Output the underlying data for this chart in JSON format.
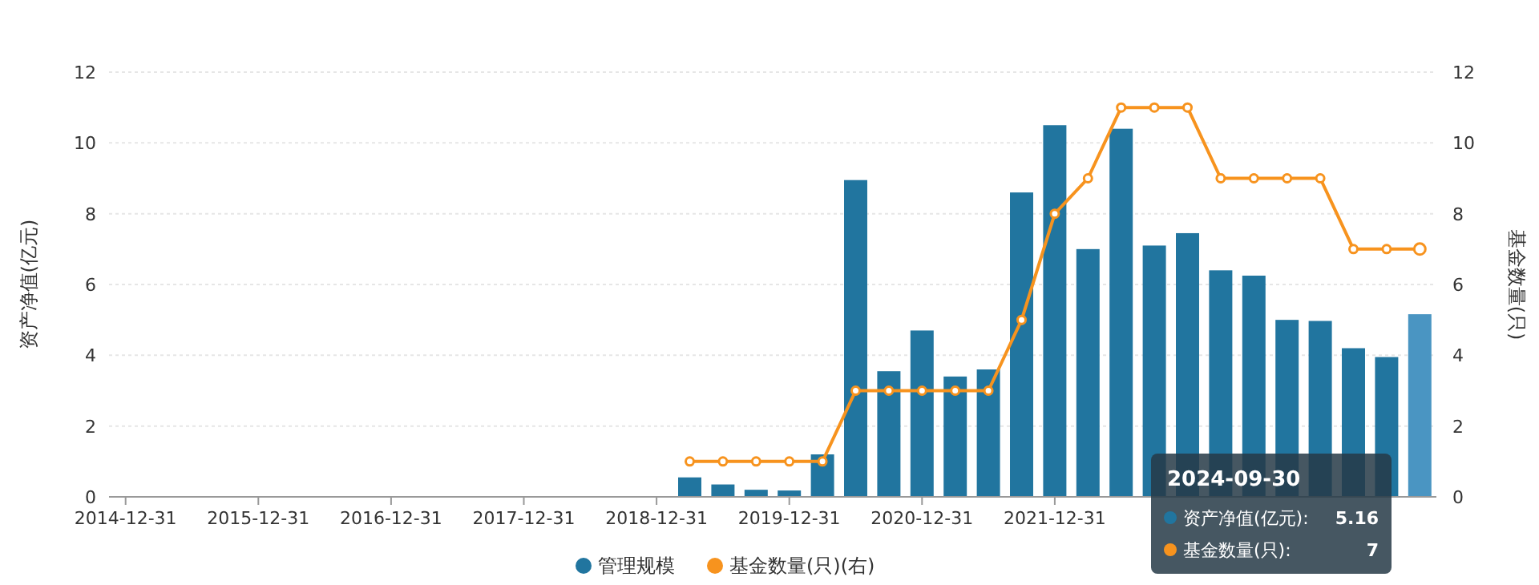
{
  "chart_data": {
    "type": "bar",
    "ylabel": "资产净值(亿元)",
    "y2label": "基金数量(只)",
    "categories": [
      "2014-12-31",
      null,
      null,
      null,
      "2015-12-31",
      null,
      null,
      null,
      "2016-12-31",
      null,
      null,
      null,
      "2017-12-31",
      null,
      null,
      null,
      "2018-12-31",
      null,
      null,
      null,
      "2019-12-31",
      null,
      null,
      null,
      "2020-12-31",
      null,
      null,
      null,
      "2021-12-31",
      null,
      null,
      null,
      null,
      null,
      null,
      null,
      null,
      null,
      null,
      null
    ],
    "series": [
      {
        "name": "管理规模",
        "color": "#21759f",
        "colors": [
          null,
          null,
          null,
          null,
          null,
          null,
          null,
          null,
          null,
          null,
          null,
          null,
          null,
          null,
          null,
          null,
          null,
          "#21759f",
          "#21759f",
          "#21759f",
          "#21759f",
          "#21759f",
          "#21759f",
          "#21759f",
          "#21759f",
          "#21759f",
          "#21759f",
          "#21759f",
          "#21759f",
          "#21759f",
          "#21759f",
          "#21759f",
          "#21759f",
          "#21759f",
          "#21759f",
          "#21759f",
          "#21759f",
          "#21759f",
          "#21759f",
          "#4a95c2"
        ],
        "values": [
          null,
          null,
          null,
          null,
          null,
          null,
          null,
          null,
          null,
          null,
          null,
          null,
          null,
          null,
          null,
          null,
          null,
          0.55,
          0.35,
          0.2,
          0.18,
          1.2,
          8.95,
          3.55,
          4.7,
          3.4,
          3.6,
          8.6,
          10.5,
          7.0,
          10.4,
          7.1,
          7.45,
          6.4,
          6.25,
          5.0,
          4.97,
          4.2,
          3.95,
          5.16
        ]
      },
      {
        "name": "基金数量(只)(右)",
        "type": "line",
        "axis": "y2",
        "color": "#f7931e",
        "marker": "circle",
        "values": [
          null,
          null,
          null,
          null,
          null,
          null,
          null,
          null,
          null,
          null,
          null,
          null,
          null,
          null,
          null,
          null,
          null,
          1,
          1,
          1,
          1,
          1,
          3,
          3,
          3,
          3,
          3,
          5,
          8,
          9,
          11,
          11,
          11,
          9,
          9,
          9,
          9,
          7,
          7,
          7
        ]
      }
    ],
    "ylim": [
      0,
      12
    ],
    "yticks": [
      0,
      2,
      4,
      6,
      8,
      10,
      12
    ],
    "y2lim": [
      0,
      12
    ],
    "y2ticks": [
      0,
      2,
      4,
      6,
      8,
      10,
      12
    ],
    "grid": "y",
    "legend": "bottom",
    "annotations": [
      "2024-09-30",
      "资产净值(亿元):",
      "5.16",
      "基金数量(只):",
      "7"
    ]
  }
}
